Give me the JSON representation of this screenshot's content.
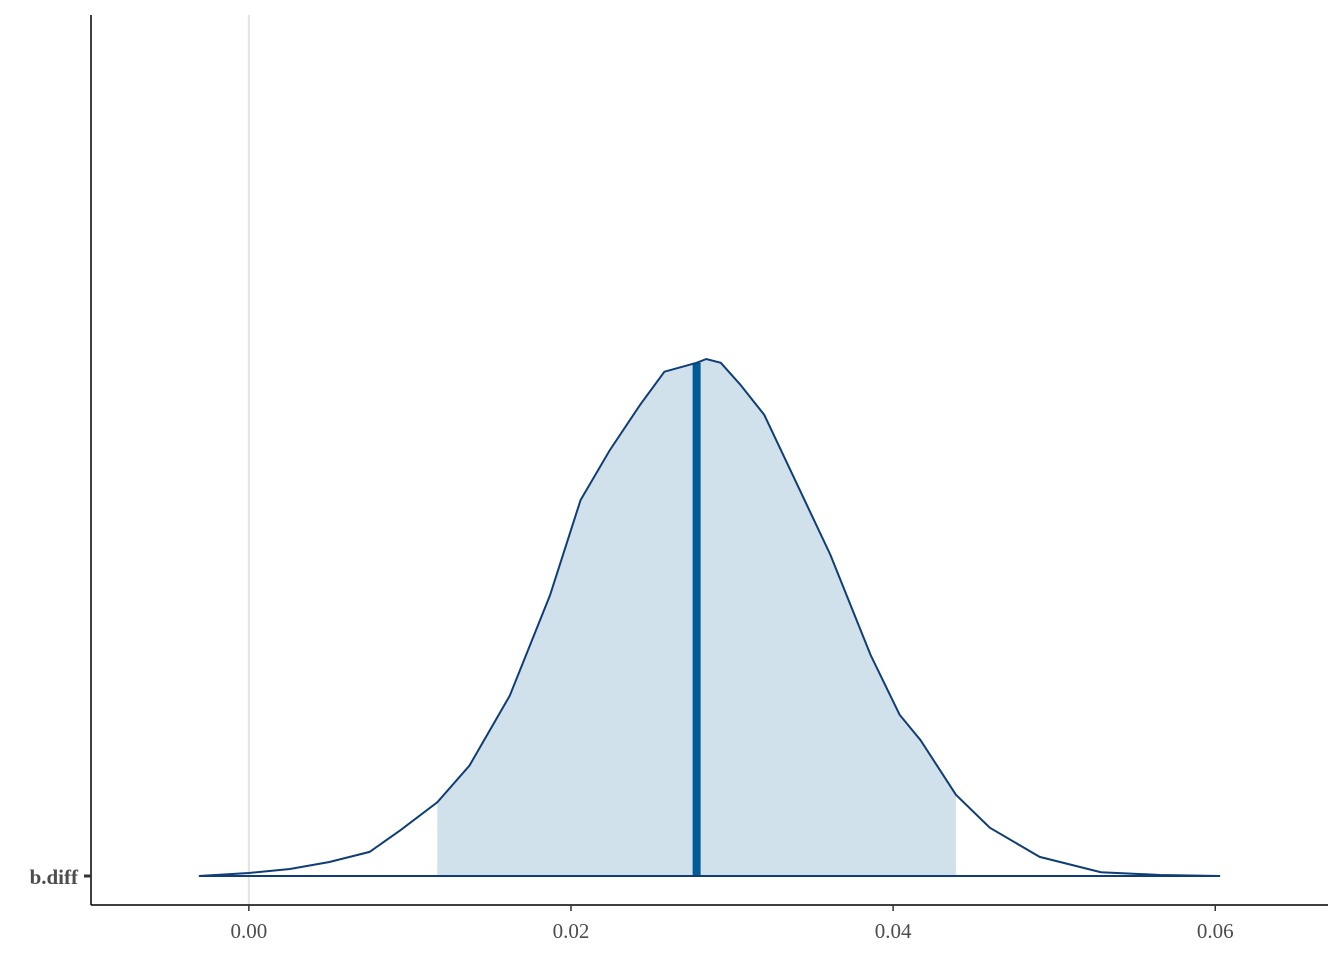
{
  "chart_data": {
    "type": "area",
    "x": [
      -0.0031,
      0.0,
      0.00255,
      0.005,
      0.0075,
      0.0094,
      0.0117,
      0.0137,
      0.0162,
      0.0187,
      0.0206,
      0.0224,
      0.0243,
      0.0258,
      0.0278,
      0.0284,
      0.0293,
      0.0305,
      0.032,
      0.0342,
      0.0361,
      0.0386,
      0.0404,
      0.0417,
      0.0439,
      0.046,
      0.0491,
      0.0529,
      0.0566,
      0.0603
    ],
    "series": [
      {
        "name": "b.diff",
        "color": "#0e3e73",
        "values": [
          0,
          0.24,
          0.55,
          1.1,
          1.9,
          3.6,
          5.8,
          8.7,
          14.2,
          22.1,
          29.6,
          33.5,
          37.1,
          39.7,
          40.4,
          40.7,
          40.4,
          38.7,
          36.3,
          30.4,
          25.3,
          17.4,
          12.7,
          10.7,
          6.4,
          3.8,
          1.5,
          0.3,
          0.08,
          0
        ]
      }
    ],
    "interval": [
      0.0117,
      0.0439
    ],
    "interval_color": "#d1e1ec",
    "median": 0.0278,
    "median_color": "#005b96",
    "vline": 0,
    "xlim": [
      -0.0098,
      0.067
    ],
    "xticks": [
      {
        "value": 0,
        "label": "0.00"
      },
      {
        "value": 0.02,
        "label": "0.02"
      },
      {
        "value": 0.04,
        "label": "0.04"
      },
      {
        "value": 0.06,
        "label": "0.06"
      }
    ]
  }
}
